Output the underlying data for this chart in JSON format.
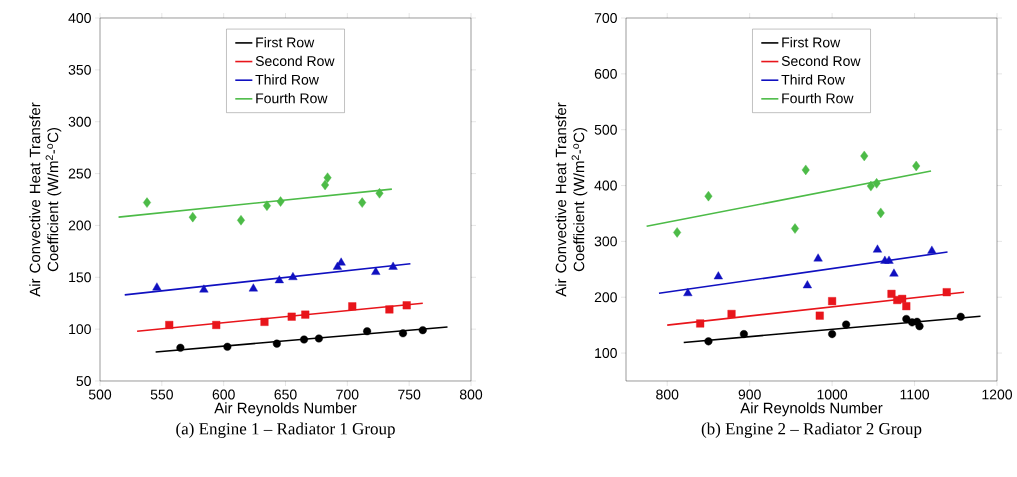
{
  "chart_data": [
    {
      "type": "scatter",
      "title": "(a) Engine 1 – Radiator 1 Group",
      "xlabel": "Air Reynolds Number",
      "ylabel": "Air Convective Heat Transfer Coefficient (W/m$^{2}$-$^{o}$C)",
      "xlim": [
        500,
        800
      ],
      "ylim": [
        50,
        400
      ],
      "xticks": [
        500,
        550,
        600,
        650,
        700,
        750,
        800
      ],
      "yticks": [
        50,
        100,
        150,
        200,
        250,
        300,
        350,
        400
      ],
      "legend": "top",
      "grid": false,
      "series": [
        {
          "name": "First Row",
          "type": "line",
          "color": "#000000",
          "x": [
            545,
            781
          ],
          "values": [
            78,
            102
          ]
        },
        {
          "name": "Second Row",
          "type": "line",
          "color": "#e8151b",
          "x": [
            530,
            761
          ],
          "values": [
            98,
            125
          ]
        },
        {
          "name": "Third Row",
          "type": "line",
          "color": "#1010c0",
          "x": [
            520,
            751
          ],
          "values": [
            133,
            163
          ]
        },
        {
          "name": "Fourth Row",
          "type": "line",
          "color": "#4cbb47",
          "x": [
            515,
            736
          ],
          "values": [
            208,
            235
          ]
        },
        {
          "type": "scatter",
          "marker": "circle",
          "color": "#000000",
          "x": [
            565,
            603,
            643,
            665,
            677,
            716,
            745,
            761
          ],
          "values": [
            82,
            83,
            86,
            90,
            91,
            98,
            96,
            99
          ]
        },
        {
          "type": "scatter",
          "marker": "square",
          "color": "#e8151b",
          "x": [
            556,
            594,
            633,
            655,
            666,
            704,
            734,
            748
          ],
          "values": [
            104,
            104,
            107,
            112,
            114,
            122,
            119,
            123
          ]
        },
        {
          "type": "scatter",
          "marker": "triangle",
          "color": "#1010c0",
          "x": [
            546,
            584,
            624,
            645,
            656,
            692,
            695,
            723,
            737
          ],
          "values": [
            140,
            138,
            139,
            147,
            150,
            160,
            164,
            155,
            160
          ]
        },
        {
          "type": "scatter",
          "marker": "diamond",
          "color": "#4cbb47",
          "x": [
            538,
            575,
            614,
            635,
            646,
            682,
            684,
            712,
            726
          ],
          "values": [
            222,
            208,
            205,
            219,
            223,
            239,
            246,
            222,
            231
          ]
        }
      ]
    },
    {
      "type": "scatter",
      "title": "(b) Engine 2 – Radiator 2 Group",
      "xlabel": "Air Reynolds Number",
      "ylabel": "Air Convective Heat Transfer Coefficient (W/m$^{2}$-$^{o}$C)",
      "xlim": [
        750,
        1200
      ],
      "ylim": [
        50,
        700
      ],
      "xticks": [
        800,
        900,
        1000,
        1100,
        1200
      ],
      "yticks": [
        100,
        200,
        300,
        400,
        500,
        600,
        700
      ],
      "legend": "top",
      "grid": false,
      "series": [
        {
          "name": "First Row",
          "type": "line",
          "color": "#000000",
          "x": [
            820,
            1180
          ],
          "values": [
            119,
            166
          ]
        },
        {
          "name": "Second Row",
          "type": "line",
          "color": "#e8151b",
          "x": [
            800,
            1160
          ],
          "values": [
            150,
            209
          ]
        },
        {
          "name": "Third Row",
          "type": "line",
          "color": "#1010c0",
          "x": [
            790,
            1140
          ],
          "values": [
            207,
            281
          ]
        },
        {
          "name": "Fourth Row",
          "type": "line",
          "color": "#4cbb47",
          "x": [
            775,
            1120
          ],
          "values": [
            327,
            426
          ]
        },
        {
          "type": "scatter",
          "marker": "circle",
          "color": "#000000",
          "x": [
            850,
            893,
            1000,
            1017,
            1090,
            1097,
            1103,
            1106,
            1156
          ],
          "values": [
            121,
            134,
            134,
            151,
            161,
            155,
            156,
            148,
            165
          ]
        },
        {
          "type": "scatter",
          "marker": "square",
          "color": "#e8151b",
          "x": [
            840,
            878,
            985,
            1000,
            1072,
            1079,
            1085,
            1090,
            1139
          ],
          "values": [
            153,
            170,
            167,
            193,
            206,
            195,
            197,
            184,
            209
          ]
        },
        {
          "type": "scatter",
          "marker": "triangle",
          "color": "#1010c0",
          "x": [
            825,
            862,
            970,
            983,
            1055,
            1064,
            1069,
            1075,
            1121
          ],
          "values": [
            207,
            237,
            221,
            269,
            285,
            265,
            265,
            242,
            283
          ]
        },
        {
          "type": "scatter",
          "marker": "diamond",
          "color": "#4cbb47",
          "x": [
            812,
            850,
            955,
            968,
            1039,
            1047,
            1054,
            1059,
            1102
          ],
          "values": [
            316,
            381,
            323,
            428,
            453,
            399,
            404,
            351,
            435
          ]
        }
      ]
    }
  ]
}
